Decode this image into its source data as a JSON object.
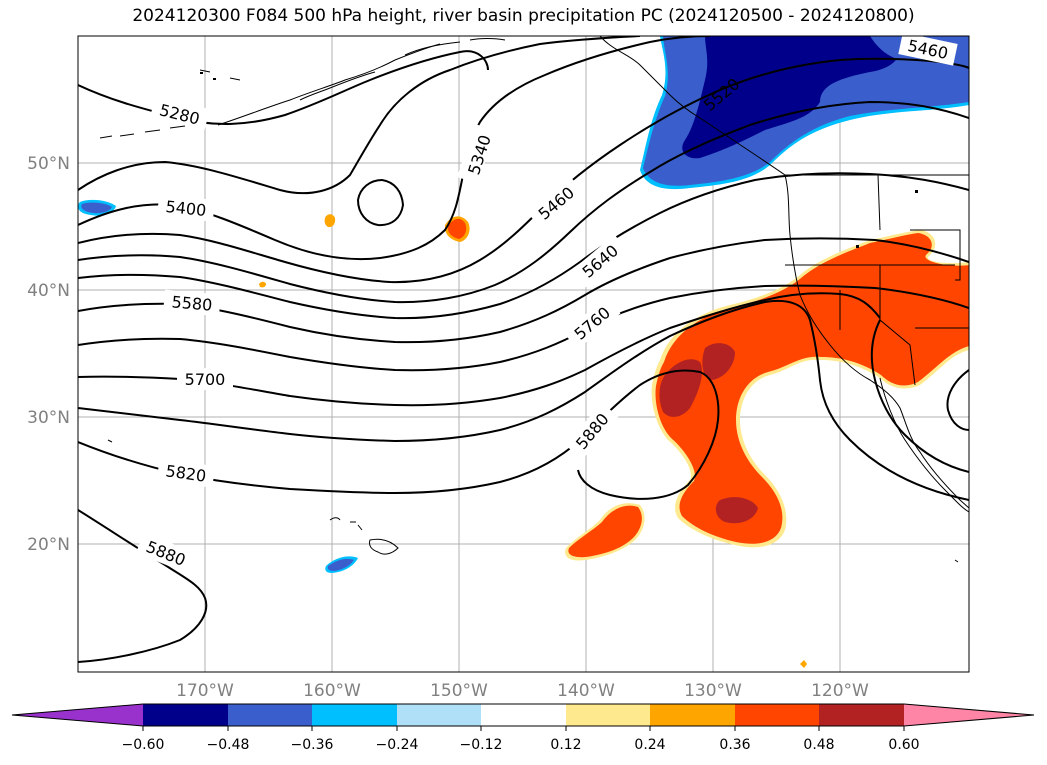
{
  "title": "2024120300 F084 500 hPa height, river basin precipitation PC (2024120500 - 2024120800)",
  "lat_labels": [
    "50°N",
    "40°N",
    "30°N",
    "20°N"
  ],
  "lon_labels": [
    "170°W",
    "160°W",
    "150°W",
    "140°W",
    "130°W",
    "120°W"
  ],
  "contour_labels": [
    "5280",
    "5340",
    "5400",
    "5460",
    "5580",
    "5640",
    "5700",
    "5760",
    "5820",
    "5880",
    "5880",
    "5460",
    "5520"
  ],
  "colorbar": {
    "ticks": [
      "−0.60",
      "−0.48",
      "−0.36",
      "−0.24",
      "−0.12",
      "0.12",
      "0.24",
      "0.36",
      "0.48",
      "0.60"
    ],
    "colors": [
      "#9932cc",
      "#00008b",
      "#3a5fcd",
      "#00bfff",
      "#b0e0f8",
      "#ffffff",
      "#ffe98e",
      "#ffa500",
      "#ff4500",
      "#b22222",
      "#ff85a6"
    ]
  },
  "colors": {
    "neg_strong": "#00008b",
    "neg_mid": "#3a5fcd",
    "neg_light": "#00bfff",
    "pos_light": "#ffe98e",
    "pos_mid": "#ffa500",
    "pos_strong": "#ff4500",
    "pos_darker": "#b22222",
    "gridline": "#b0b0b0",
    "contour": "#000000"
  }
}
